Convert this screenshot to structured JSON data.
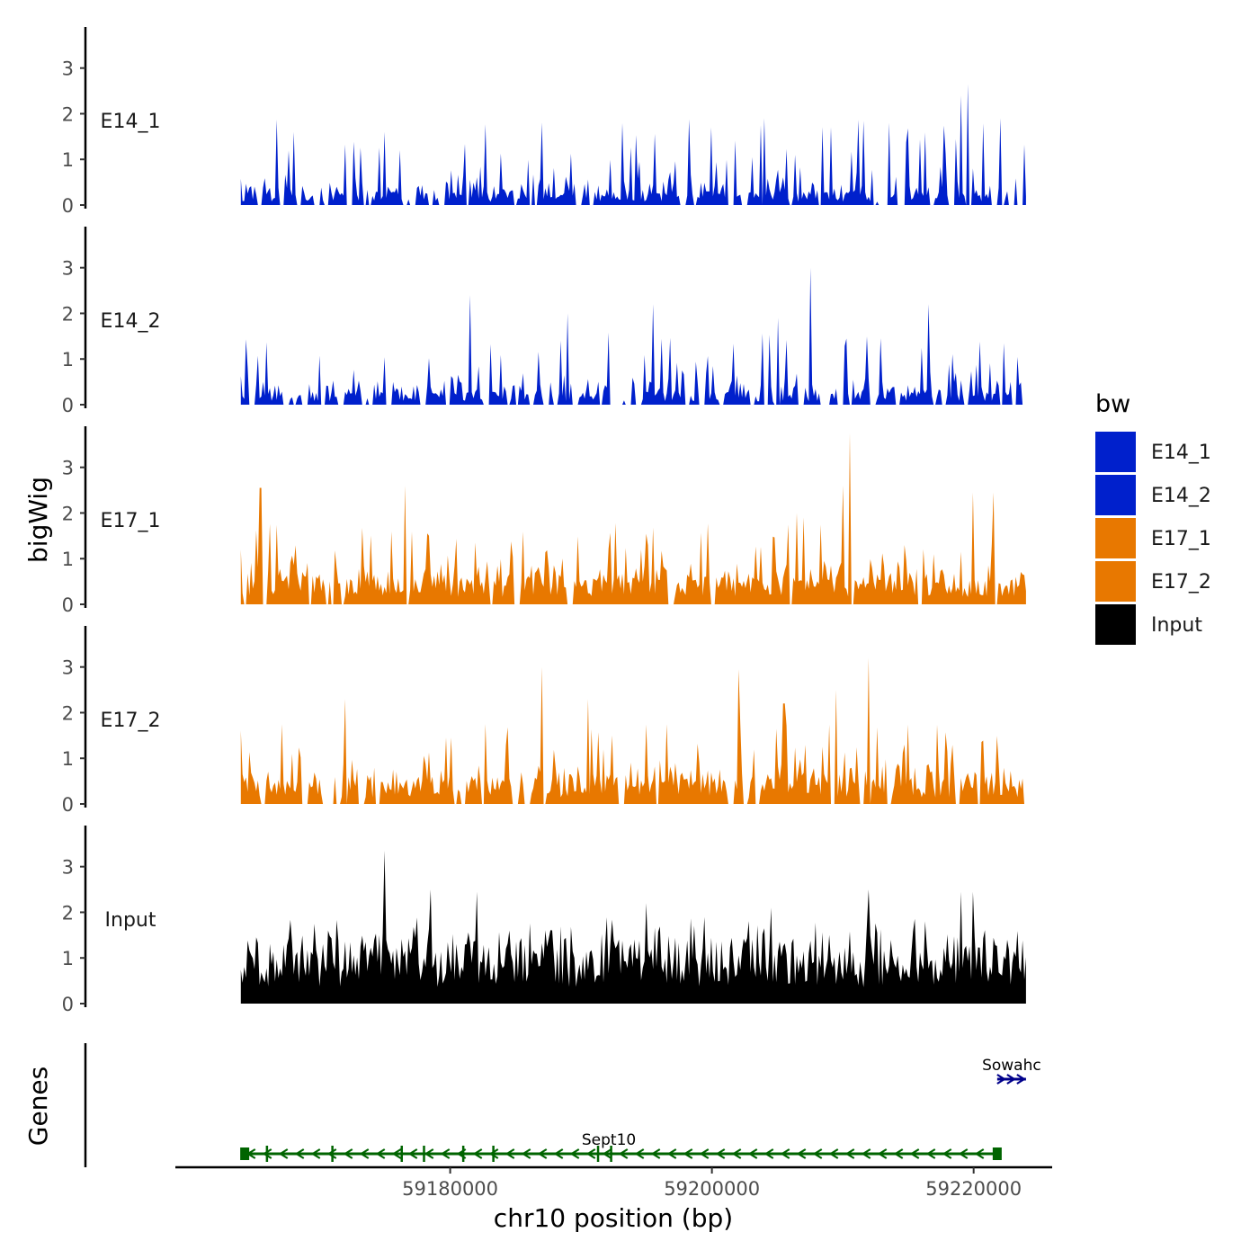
{
  "chart_data": {
    "type": "area",
    "title": "",
    "y_title": "bigWig",
    "genes_title": "Genes",
    "xlabel": "chr10 position (bp)",
    "chromosome": "chr10",
    "xlim": [
      59159000,
      59226000
    ],
    "data_x_range": [
      59164000,
      59224000
    ],
    "x_ticks": [
      59180000,
      59200000,
      59220000
    ],
    "x_tick_labels": [
      "59180000",
      "59200000",
      "59220000"
    ],
    "ylim": [
      0,
      3.9
    ],
    "y_ticks": [
      0,
      1,
      2,
      3
    ],
    "y_tick_labels": [
      "0",
      "1",
      "2",
      "3"
    ],
    "legend": {
      "title": "bw",
      "entries": [
        {
          "label": "E14_1",
          "color": "#0020cc"
        },
        {
          "label": "E14_2",
          "color": "#0020cc"
        },
        {
          "label": "E17_1",
          "color": "#e87800"
        },
        {
          "label": "E17_2",
          "color": "#e87800"
        },
        {
          "label": "Input",
          "color": "#000000"
        }
      ]
    },
    "tracks": [
      {
        "name": "E14_1",
        "color": "#0020cc",
        "seed": 11,
        "baseline": 0.2,
        "spike_max": 1.8,
        "gap_prob": 0.1,
        "peaks": [
          [
            59168000,
            1.6
          ],
          [
            59175000,
            1.6
          ],
          [
            59200000,
            1.7
          ],
          [
            59204000,
            1.9
          ],
          [
            59213500,
            1.8
          ],
          [
            59219000,
            2.4
          ],
          [
            59219500,
            2.65
          ],
          [
            59222000,
            1.9
          ]
        ]
      },
      {
        "name": "E14_2",
        "color": "#0020cc",
        "seed": 23,
        "baseline": 0.2,
        "spike_max": 1.5,
        "gap_prob": 0.12,
        "peaks": [
          [
            59181500,
            2.4
          ],
          [
            59189000,
            2.0
          ],
          [
            59195500,
            2.2
          ],
          [
            59207500,
            3.0
          ],
          [
            59205000,
            1.9
          ],
          [
            59216500,
            2.2
          ]
        ]
      },
      {
        "name": "E17_1",
        "color": "#e87800",
        "seed": 37,
        "baseline": 0.45,
        "spike_max": 1.6,
        "gap_prob": 0.05,
        "peaks": [
          [
            59165500,
            2.55
          ],
          [
            59176500,
            2.6
          ],
          [
            59206500,
            2.0
          ],
          [
            59210500,
            3.75
          ],
          [
            59210000,
            2.6
          ],
          [
            59220000,
            2.45
          ],
          [
            59221500,
            2.45
          ],
          [
            59207000,
            1.9
          ]
        ]
      },
      {
        "name": "E17_2",
        "color": "#e87800",
        "seed": 51,
        "baseline": 0.4,
        "spike_max": 1.6,
        "gap_prob": 0.05,
        "peaks": [
          [
            59172000,
            2.3
          ],
          [
            59187000,
            3.0
          ],
          [
            59190500,
            2.3
          ],
          [
            59202000,
            2.95
          ],
          [
            59205500,
            2.2
          ],
          [
            59209500,
            2.5
          ],
          [
            59212000,
            3.2
          ]
        ]
      },
      {
        "name": "Input",
        "color": "#000000",
        "seed": 67,
        "baseline": 1.0,
        "spike_max": 1.5,
        "gap_prob": 0.0,
        "peaks": [
          [
            59175000,
            3.35
          ],
          [
            59178500,
            2.5
          ],
          [
            59182000,
            2.45
          ],
          [
            59195000,
            2.2
          ],
          [
            59204500,
            2.1
          ],
          [
            59212000,
            2.5
          ],
          [
            59219000,
            2.45
          ],
          [
            59220000,
            2.45
          ]
        ]
      }
    ],
    "genes": [
      {
        "name": "Sept10",
        "color": "#006400",
        "strand": "-",
        "start": 59164000,
        "end": 59222000,
        "exons": [
          59164300,
          59166000,
          59171000,
          59176300,
          59178000,
          59181000,
          59183300,
          59191300,
          59192300,
          59221800
        ]
      },
      {
        "name": "Sowahc",
        "color": "#00008b",
        "strand": "+",
        "start": 59221800,
        "end": 59224000,
        "exons": []
      }
    ]
  }
}
